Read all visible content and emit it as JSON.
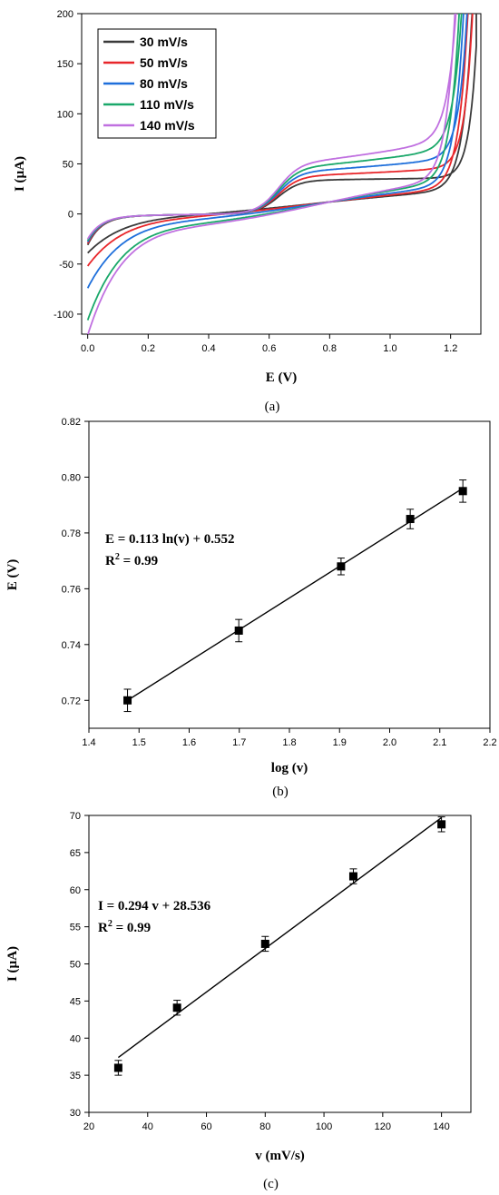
{
  "chart_data": [
    {
      "id": "a",
      "type": "line",
      "panel_label": "(a)",
      "xlabel": "E (V)",
      "ylabel": "I (µA)",
      "xlim": [
        -0.02,
        1.3
      ],
      "ylim": [
        -120,
        200
      ],
      "xticks": [
        "0.0",
        "0.2",
        "0.4",
        "0.6",
        "0.8",
        "1.0",
        "1.2"
      ],
      "yticks": [
        "-100",
        "-50",
        "0",
        "50",
        "100",
        "150",
        "200"
      ],
      "legend_position": "top-left",
      "grid": false,
      "series": [
        {
          "name": "30   mV/s",
          "color": "#3a3a3a",
          "s": 0.0,
          "start": -37
        },
        {
          "name": "50   mV/s",
          "color": "#e8262a",
          "s": 0.25,
          "start": -50
        },
        {
          "name": "80   mV/s",
          "color": "#1e6fdb",
          "s": 0.5,
          "start": -72
        },
        {
          "name": "110 mV/s",
          "color": "#1aa86a",
          "s": 0.75,
          "start": -104
        },
        {
          "name": "140 mV/s",
          "color": "#c070e0",
          "s": 1.0,
          "start": -119
        }
      ]
    },
    {
      "id": "b",
      "type": "scatter",
      "panel_label": "(b)",
      "xlabel": "log (v)",
      "ylabel": "E (V)",
      "xlim": [
        1.4,
        2.2
      ],
      "ylim": [
        0.71,
        0.82
      ],
      "xticks": [
        "1.4",
        "1.5",
        "1.6",
        "1.7",
        "1.8",
        "1.9",
        "2.0",
        "2.1",
        "2.2"
      ],
      "yticks": [
        "0.72",
        "0.74",
        "0.76",
        "0.78",
        "0.80",
        "0.82"
      ],
      "points": [
        {
          "x": 1.477,
          "y": 0.72,
          "err": 0.004
        },
        {
          "x": 1.699,
          "y": 0.745,
          "err": 0.004
        },
        {
          "x": 1.903,
          "y": 0.768,
          "err": 0.003
        },
        {
          "x": 2.041,
          "y": 0.785,
          "err": 0.0035
        },
        {
          "x": 2.146,
          "y": 0.795,
          "err": 0.004
        }
      ],
      "fit": {
        "x": [
          1.477,
          2.146
        ],
        "y": [
          0.72,
          0.796
        ]
      },
      "equation": "E = 0.113 ln(v) + 0.552",
      "r2_label": "R",
      "r2_sup": "2",
      "r2_value": " = 0.99"
    },
    {
      "id": "c",
      "type": "scatter",
      "panel_label": "(c)",
      "xlabel": "v (mV/s)",
      "ylabel": "I (µA)",
      "xlim": [
        20,
        150
      ],
      "ylim": [
        30,
        70
      ],
      "xticks": [
        "20",
        "40",
        "60",
        "80",
        "100",
        "120",
        "140"
      ],
      "yticks": [
        "30",
        "35",
        "40",
        "45",
        "50",
        "55",
        "60",
        "65",
        "70"
      ],
      "points": [
        {
          "x": 30,
          "y": 36.0,
          "err": 1.0
        },
        {
          "x": 50,
          "y": 44.1,
          "err": 1.0
        },
        {
          "x": 80,
          "y": 52.7,
          "err": 1.0
        },
        {
          "x": 110,
          "y": 61.8,
          "err": 1.0
        },
        {
          "x": 140,
          "y": 68.8,
          "err": 1.0
        }
      ],
      "fit": {
        "x": [
          30,
          140
        ],
        "y": [
          37.4,
          69.7
        ]
      },
      "equation": "I = 0.294 v + 28.536",
      "r2_label": "R",
      "r2_sup": "2",
      "r2_value": " = 0.99"
    }
  ]
}
